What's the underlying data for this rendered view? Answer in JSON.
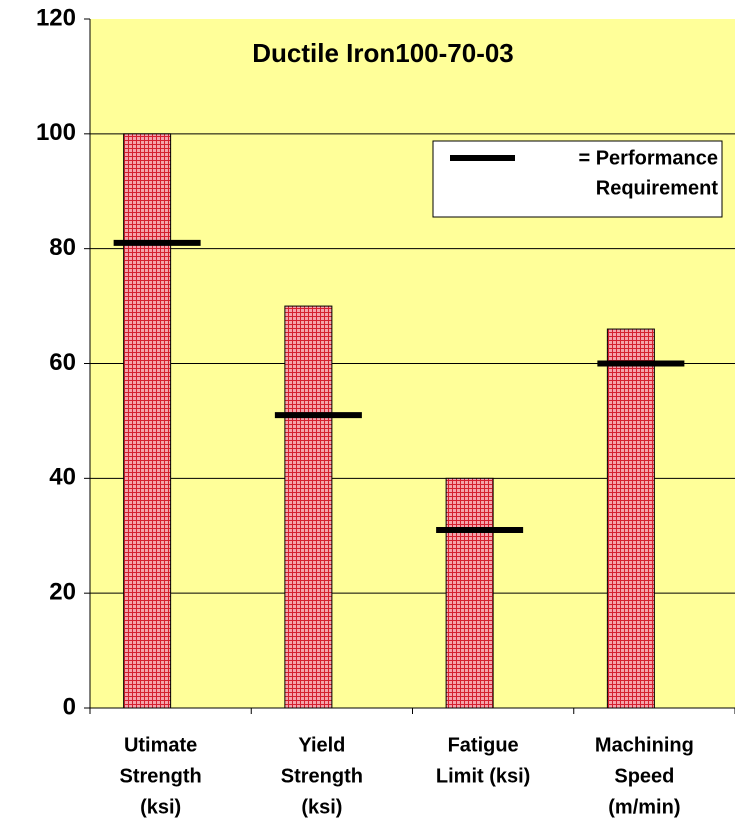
{
  "chart_data": {
    "type": "bar",
    "title": "Ductile Iron100-70-03",
    "categories": [
      [
        "Utimate",
        "Strength",
        "(ksi)"
      ],
      [
        "Yield",
        "Strength",
        "(ksi)"
      ],
      [
        "Fatigue",
        "Limit (ksi)"
      ],
      [
        "Machining",
        "Speed",
        "(m/min)"
      ]
    ],
    "series": [
      {
        "type": "bar",
        "color": "#f4a3ab",
        "pattern_color": "#d42030",
        "values": [
          100,
          70,
          40,
          66
        ]
      },
      {
        "type": "marker",
        "color": "#000000",
        "values": [
          81,
          51,
          31,
          60
        ]
      }
    ],
    "legend_text": [
      "= Performance",
      "Requirement"
    ],
    "ylim": [
      0,
      120
    ],
    "yticks": [
      0,
      20,
      40,
      60,
      80,
      100,
      120
    ],
    "grid": true,
    "background": "#ffff99"
  }
}
